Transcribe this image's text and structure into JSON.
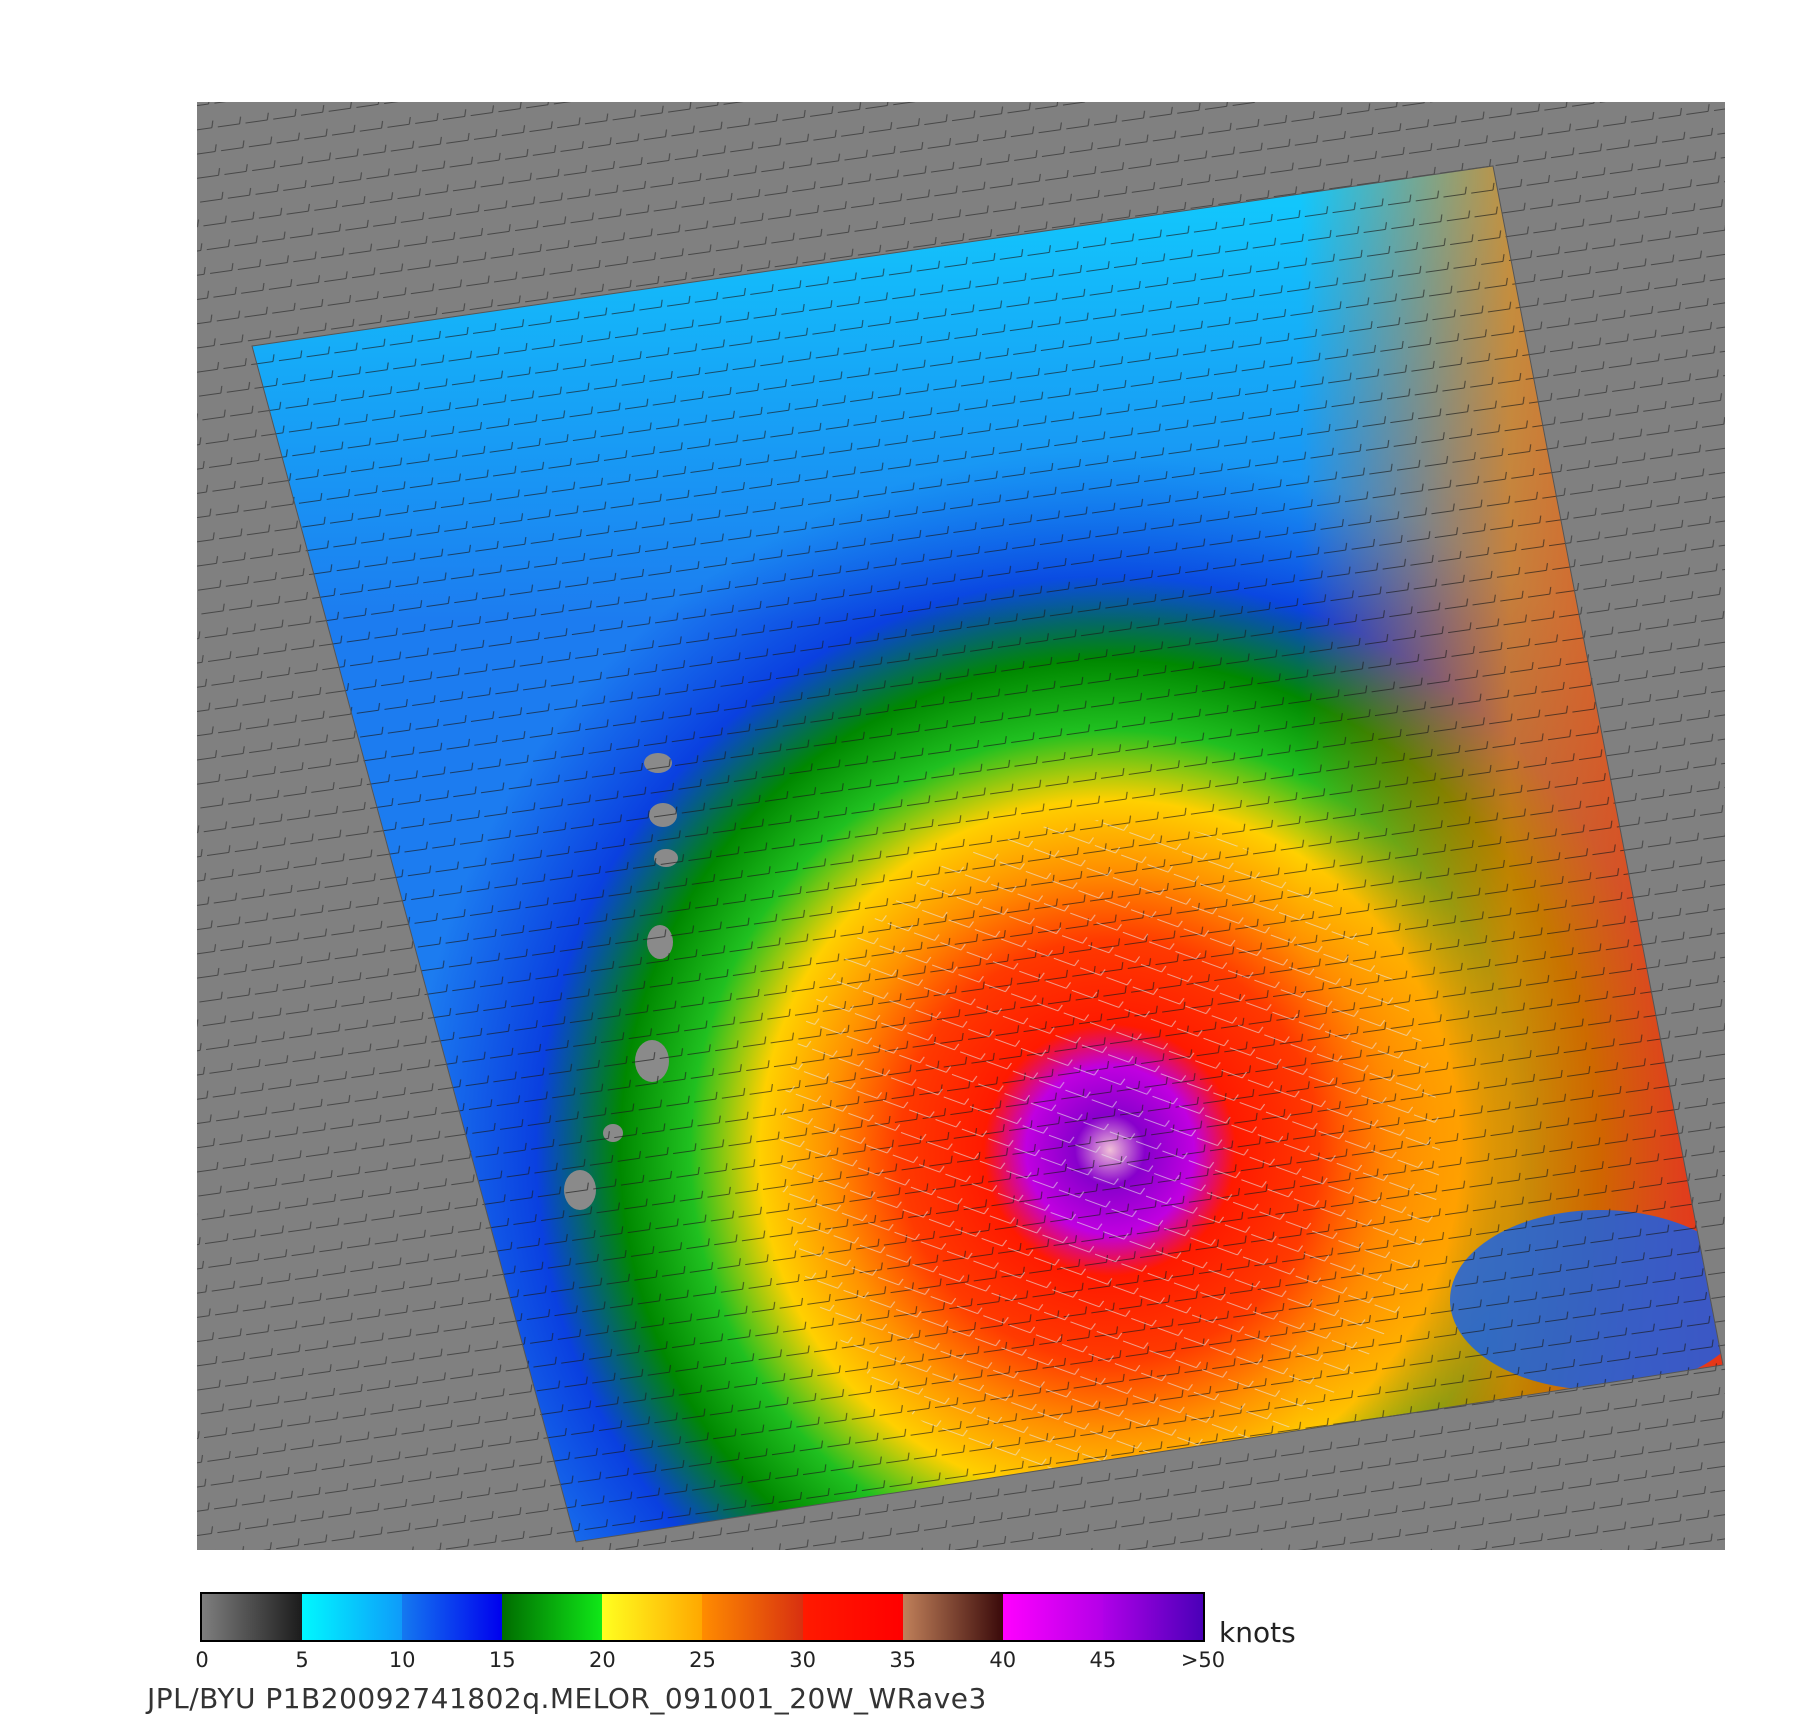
{
  "figure": {
    "caption": "JPL/BYU  P1B20092741802q.MELOR_091001_20W_WRave3",
    "units": "knots"
  },
  "colorbar": {
    "tick_labels": [
      "0",
      "5",
      "10",
      "15",
      "20",
      "25",
      "30",
      "35",
      "40",
      "45",
      ">50"
    ],
    "segments": [
      {
        "from": 0,
        "to": 5,
        "colors": [
          "#7e7e7e",
          "#1c1c1c"
        ]
      },
      {
        "from": 5,
        "to": 10,
        "colors": [
          "#00f8ff",
          "#0e9bfa"
        ]
      },
      {
        "from": 10,
        "to": 15,
        "colors": [
          "#1479f0",
          "#0000ee"
        ]
      },
      {
        "from": 15,
        "to": 20,
        "colors": [
          "#006c00",
          "#10e818"
        ]
      },
      {
        "from": 20,
        "to": 25,
        "colors": [
          "#ffff20",
          "#ffa800"
        ]
      },
      {
        "from": 25,
        "to": 30,
        "colors": [
          "#ff8c00",
          "#d83010"
        ]
      },
      {
        "from": 30,
        "to": 35,
        "colors": [
          "#ff1a00",
          "#ff0000"
        ]
      },
      {
        "from": 35,
        "to": 40,
        "colors": [
          "#c0805a",
          "#3a0a0a"
        ]
      },
      {
        "from": 40,
        "to": 45,
        "colors": [
          "#ff00ff",
          "#b400e8"
        ]
      },
      {
        "from": 45,
        "to": 50,
        "colors": [
          "#b000e8",
          "#4a00b8"
        ]
      }
    ]
  },
  "map": {
    "background_color": "#808080",
    "storm_name": "MELOR",
    "wind_speed_field": {
      "calm_color": "#1c7cf0",
      "eye_wall_color": "#c000e0",
      "eye_color": "#f0c0d8"
    }
  }
}
